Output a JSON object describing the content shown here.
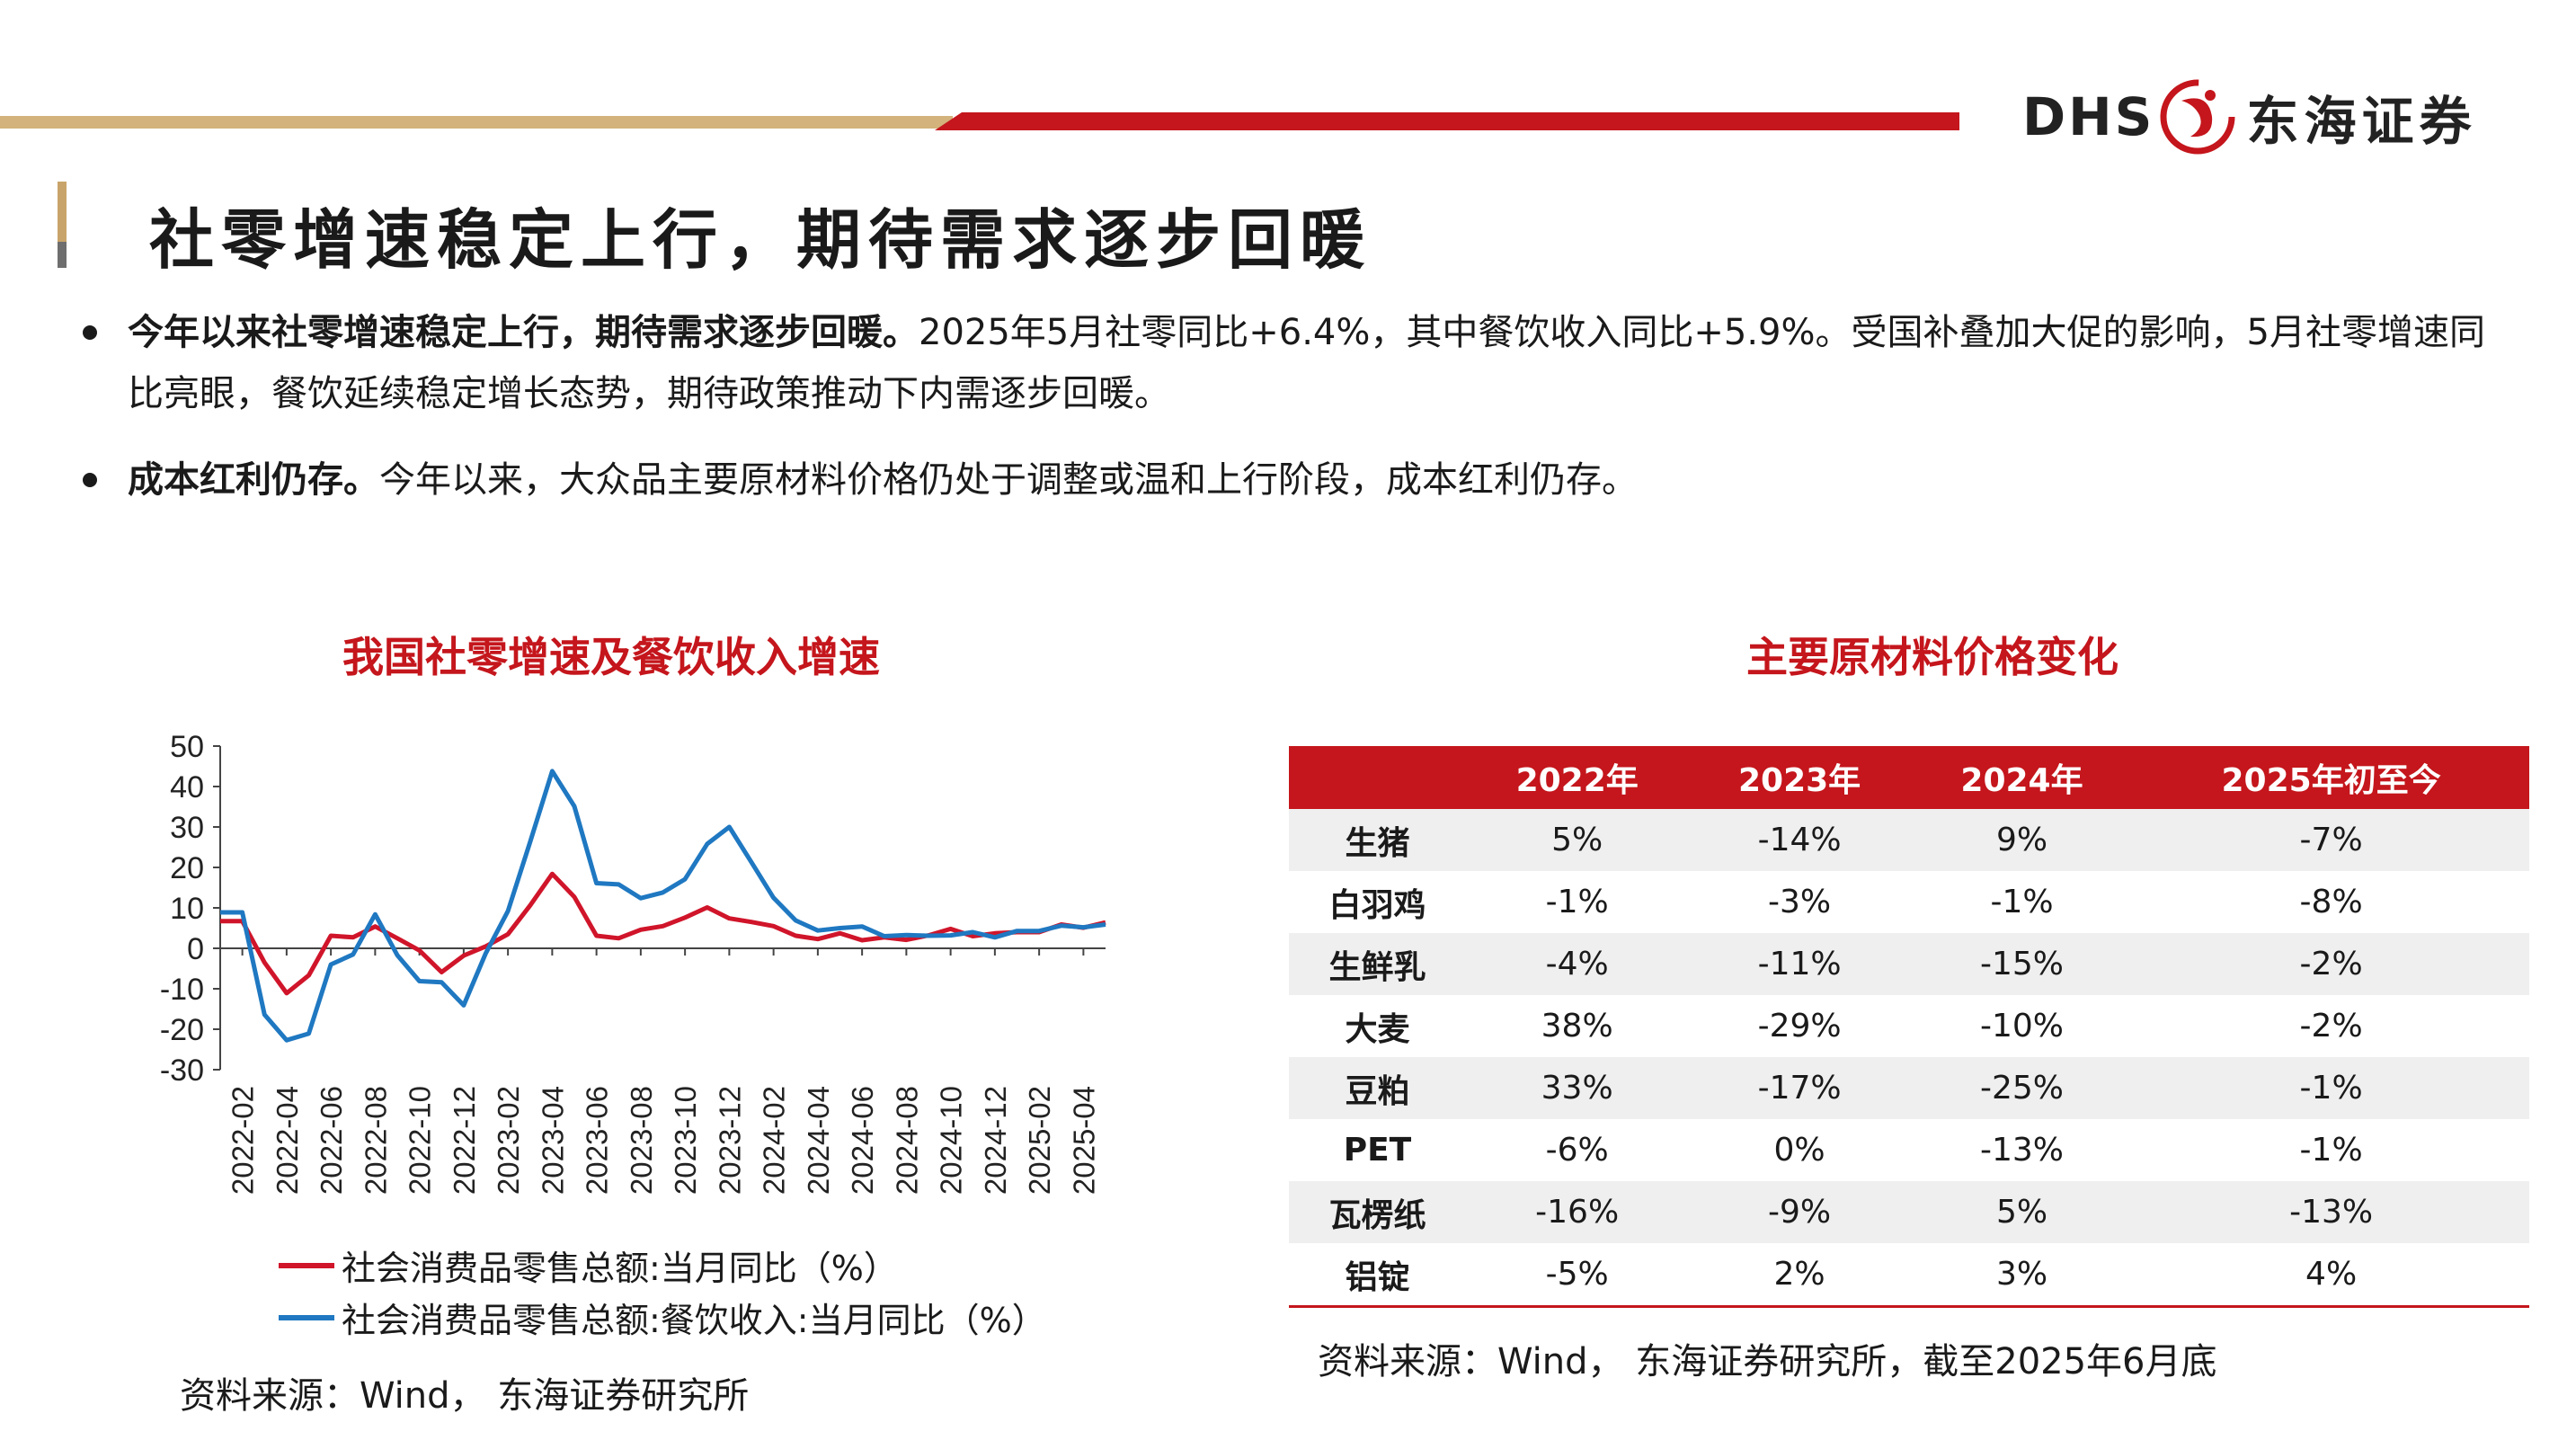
{
  "header": {
    "logo_latin": "DHS",
    "logo_chinese": "东海证券",
    "brand_red": "#c4161c",
    "brand_gold": "#d3b27b"
  },
  "page_title": "社零增速稳定上行，期待需求逐步回暖",
  "bullets": [
    {
      "bold": "今年以来社零增速稳定上行，期待需求逐步回暖。",
      "text": "2025年5月社零同比+6.4%，其中餐饮收入同比+5.9%。受国补叠加大促的影响，5月社零增速同比亮眼，餐饮延续稳定增长态势，期待政策推动下内需逐步回暖。"
    },
    {
      "bold": "成本红利仍存。",
      "text": "今年以来，大众品主要原材料价格仍处于调整或温和上行阶段，成本红利仍存。"
    }
  ],
  "chart_title": "我国社零增速及餐饮收入增速",
  "chart_data": {
    "type": "line",
    "ylim": [
      -30,
      50
    ],
    "yticks": [
      50,
      40,
      30,
      20,
      10,
      0,
      -10,
      -20,
      -30
    ],
    "x": [
      "2022-01",
      "2022-02",
      "2022-03",
      "2022-04",
      "2022-05",
      "2022-06",
      "2022-07",
      "2022-08",
      "2022-09",
      "2022-10",
      "2022-11",
      "2022-12",
      "2023-01",
      "2023-02",
      "2023-03",
      "2023-04",
      "2023-05",
      "2023-06",
      "2023-07",
      "2023-08",
      "2023-09",
      "2023-10",
      "2023-11",
      "2023-12",
      "2024-01",
      "2024-02",
      "2024-03",
      "2024-04",
      "2024-05",
      "2024-06",
      "2024-07",
      "2024-08",
      "2024-09",
      "2024-10",
      "2024-11",
      "2024-12",
      "2025-01",
      "2025-02",
      "2025-03",
      "2025-04",
      "2025-05"
    ],
    "xticks": [
      "2022-02",
      "2022-04",
      "2022-06",
      "2022-08",
      "2022-10",
      "2022-12",
      "2023-02",
      "2023-04",
      "2023-06",
      "2023-08",
      "2023-10",
      "2023-12",
      "2024-02",
      "2024-04",
      "2024-06",
      "2024-08",
      "2024-10",
      "2024-12",
      "2025-02",
      "2025-04"
    ],
    "series": [
      {
        "name": "社会消费品零售总额:当月同比（%）",
        "color": "#d0152a",
        "values": [
          6.7,
          6.7,
          -3.5,
          -11.1,
          -6.7,
          3.1,
          2.7,
          5.4,
          2.5,
          -0.5,
          -5.9,
          -1.8,
          0.5,
          3.5,
          10.6,
          18.4,
          12.7,
          3.1,
          2.5,
          4.6,
          5.5,
          7.6,
          10.1,
          7.4,
          6.5,
          5.5,
          3.1,
          2.3,
          3.7,
          2.0,
          2.7,
          2.1,
          3.2,
          4.8,
          3.0,
          3.7,
          4.0,
          4.0,
          5.9,
          5.1,
          6.4
        ]
      },
      {
        "name": "社会消费品零售总额:餐饮收入:当月同比（%）",
        "color": "#1f78c1",
        "values": [
          8.9,
          8.9,
          -16.4,
          -22.7,
          -21.1,
          -4.0,
          -1.5,
          8.4,
          -1.7,
          -8.1,
          -8.4,
          -14.1,
          -1.2,
          9.2,
          26.3,
          43.8,
          35.1,
          16.1,
          15.8,
          12.4,
          13.8,
          17.1,
          25.8,
          30.0,
          21.3,
          12.5,
          6.9,
          4.4,
          5.0,
          5.4,
          3.0,
          3.3,
          3.1,
          3.2,
          4.0,
          2.7,
          4.3,
          4.3,
          5.6,
          5.2,
          5.9
        ]
      }
    ]
  },
  "chart_source": "资料来源：Wind， 东海证券研究所",
  "table_title": "主要原材料价格变化",
  "table": {
    "headers": [
      "",
      "2022年",
      "2023年",
      "2024年",
      "2025年初至今"
    ],
    "rows": [
      {
        "label": "生猪",
        "values": [
          "5%",
          "-14%",
          "9%",
          "-7%"
        ]
      },
      {
        "label": "白羽鸡",
        "values": [
          "-1%",
          "-3%",
          "-1%",
          "-8%"
        ]
      },
      {
        "label": "生鲜乳",
        "values": [
          "-4%",
          "-11%",
          "-15%",
          "-2%"
        ]
      },
      {
        "label": "大麦",
        "values": [
          "38%",
          "-29%",
          "-10%",
          "-2%"
        ]
      },
      {
        "label": "豆粕",
        "values": [
          "33%",
          "-17%",
          "-25%",
          "-1%"
        ]
      },
      {
        "label": "PET",
        "values": [
          "-6%",
          "0%",
          "-13%",
          "-1%"
        ]
      },
      {
        "label": "瓦楞纸",
        "values": [
          "-16%",
          "-9%",
          "5%",
          "-13%"
        ]
      },
      {
        "label": "铝锭",
        "values": [
          "-5%",
          "2%",
          "3%",
          "4%"
        ]
      }
    ]
  },
  "table_source": "资料来源：Wind， 东海证券研究所，截至2025年6月底"
}
